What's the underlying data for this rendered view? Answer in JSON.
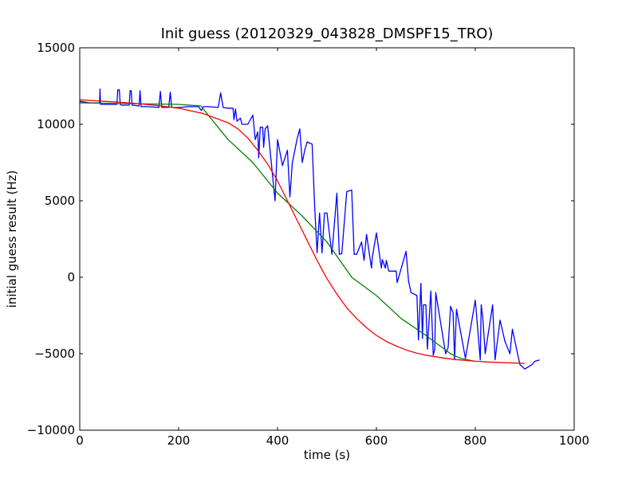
{
  "chart_data": {
    "type": "line",
    "title": "Init guess (20120329_043828_DMSPF15_TRO)",
    "xlabel": "time (s)",
    "ylabel": "initial guess result (Hz)",
    "xlim": [
      0,
      1000
    ],
    "ylim": [
      -10000,
      15000
    ],
    "xticks": [
      0,
      200,
      400,
      600,
      800,
      1000
    ],
    "xtick_labels": [
      "0",
      "200",
      "400",
      "600",
      "800",
      "1000"
    ],
    "yticks": [
      -10000,
      -5000,
      0,
      5000,
      10000,
      15000
    ],
    "ytick_labels": [
      "−10000",
      "−5000",
      "0",
      "5000",
      "10000",
      "15000"
    ],
    "grid": false,
    "legend": "none",
    "series": [
      {
        "color": "#0000ff",
        "x": [
          0,
          20,
          40,
          41,
          42,
          60,
          75,
          77,
          80,
          82,
          84,
          100,
          102,
          104,
          106,
          120,
          122,
          124,
          140,
          160,
          163,
          166,
          180,
          183,
          186,
          200,
          220,
          240,
          246,
          250,
          260,
          280,
          285,
          290,
          300,
          310,
          312,
          315,
          318,
          325,
          328,
          340,
          350,
          352,
          355,
          360,
          362,
          365,
          370,
          372,
          375,
          380,
          395,
          400,
          410,
          420,
          425,
          430,
          440,
          445,
          450,
          455,
          460,
          470,
          475,
          480,
          485,
          490,
          495,
          500,
          510,
          520,
          525,
          530,
          540,
          550,
          555,
          560,
          570,
          575,
          580,
          590,
          592,
          600,
          610,
          612,
          618,
          620,
          625,
          640,
          642,
          660,
          665,
          670,
          682,
          685,
          690,
          693,
          695,
          700,
          703,
          710,
          715,
          718,
          720,
          740,
          745,
          750,
          755,
          758,
          762,
          780,
          800,
          810,
          812,
          815,
          820,
          835,
          840,
          850,
          860,
          870,
          875,
          890,
          900,
          910,
          915,
          920,
          930
        ],
        "y": [
          11500,
          11400,
          11400,
          12300,
          11300,
          11300,
          11300,
          12250,
          12250,
          11300,
          11250,
          11250,
          12200,
          12200,
          11250,
          11200,
          12200,
          11150,
          11150,
          11100,
          12150,
          11100,
          11100,
          12100,
          11100,
          11100,
          11150,
          11150,
          10900,
          11150,
          11150,
          11100,
          12050,
          11100,
          11050,
          11050,
          10300,
          11000,
          10200,
          10400,
          10000,
          10000,
          10600,
          10000,
          9000,
          9500,
          7800,
          9800,
          9800,
          8500,
          9700,
          9900,
          5000,
          9000,
          7300,
          8300,
          5250,
          7500,
          9100,
          9700,
          7500,
          8300,
          8850,
          8700,
          4700,
          1600,
          4200,
          1600,
          4200,
          4200,
          1500,
          5500,
          1500,
          1550,
          5600,
          5700,
          1500,
          1500,
          2300,
          1100,
          2800,
          600,
          1350,
          2900,
          600,
          1150,
          600,
          1100,
          400,
          400,
          -350,
          1700,
          -250,
          -1000,
          -1200,
          -4100,
          -400,
          -4000,
          -1800,
          -1800,
          -4700,
          -900,
          -5100,
          -4700,
          -1000,
          -5000,
          -4600,
          -1900,
          -2300,
          -5400,
          -2100,
          -5300,
          -1500,
          -5400,
          -1800,
          -2600,
          -5000,
          -1800,
          -5400,
          -2800,
          -4200,
          -5000,
          -3400,
          -5700,
          -6000,
          -5800,
          -5700,
          -5500,
          -5400
        ]
      },
      {
        "color": "#008000",
        "x": [
          0,
          100,
          200,
          245,
          300,
          350,
          400,
          450,
          500,
          550,
          600,
          650,
          700,
          750,
          770,
          800
        ],
        "y": [
          11400,
          11350,
          11300,
          11200,
          9000,
          7500,
          5500,
          4000,
          2300,
          0,
          -1200,
          -2700,
          -3800,
          -5000,
          -5300,
          -5500
        ]
      },
      {
        "color": "#ff0000",
        "x": [
          0,
          50,
          100,
          150,
          200,
          250,
          300,
          320,
          340,
          360,
          380,
          400,
          420,
          440,
          460,
          480,
          500,
          520,
          540,
          560,
          580,
          600,
          620,
          640,
          660,
          680,
          700,
          720,
          740,
          760,
          780,
          800,
          820,
          840,
          860,
          880,
          900
        ],
        "y": [
          11600,
          11500,
          11400,
          11250,
          11050,
          10700,
          10100,
          9700,
          9100,
          8300,
          7400,
          6300,
          5000,
          3700,
          2400,
          1100,
          -100,
          -1100,
          -2000,
          -2700,
          -3300,
          -3800,
          -4200,
          -4500,
          -4750,
          -4950,
          -5100,
          -5200,
          -5300,
          -5380,
          -5440,
          -5490,
          -5530,
          -5560,
          -5590,
          -5610,
          -5630
        ]
      }
    ]
  }
}
